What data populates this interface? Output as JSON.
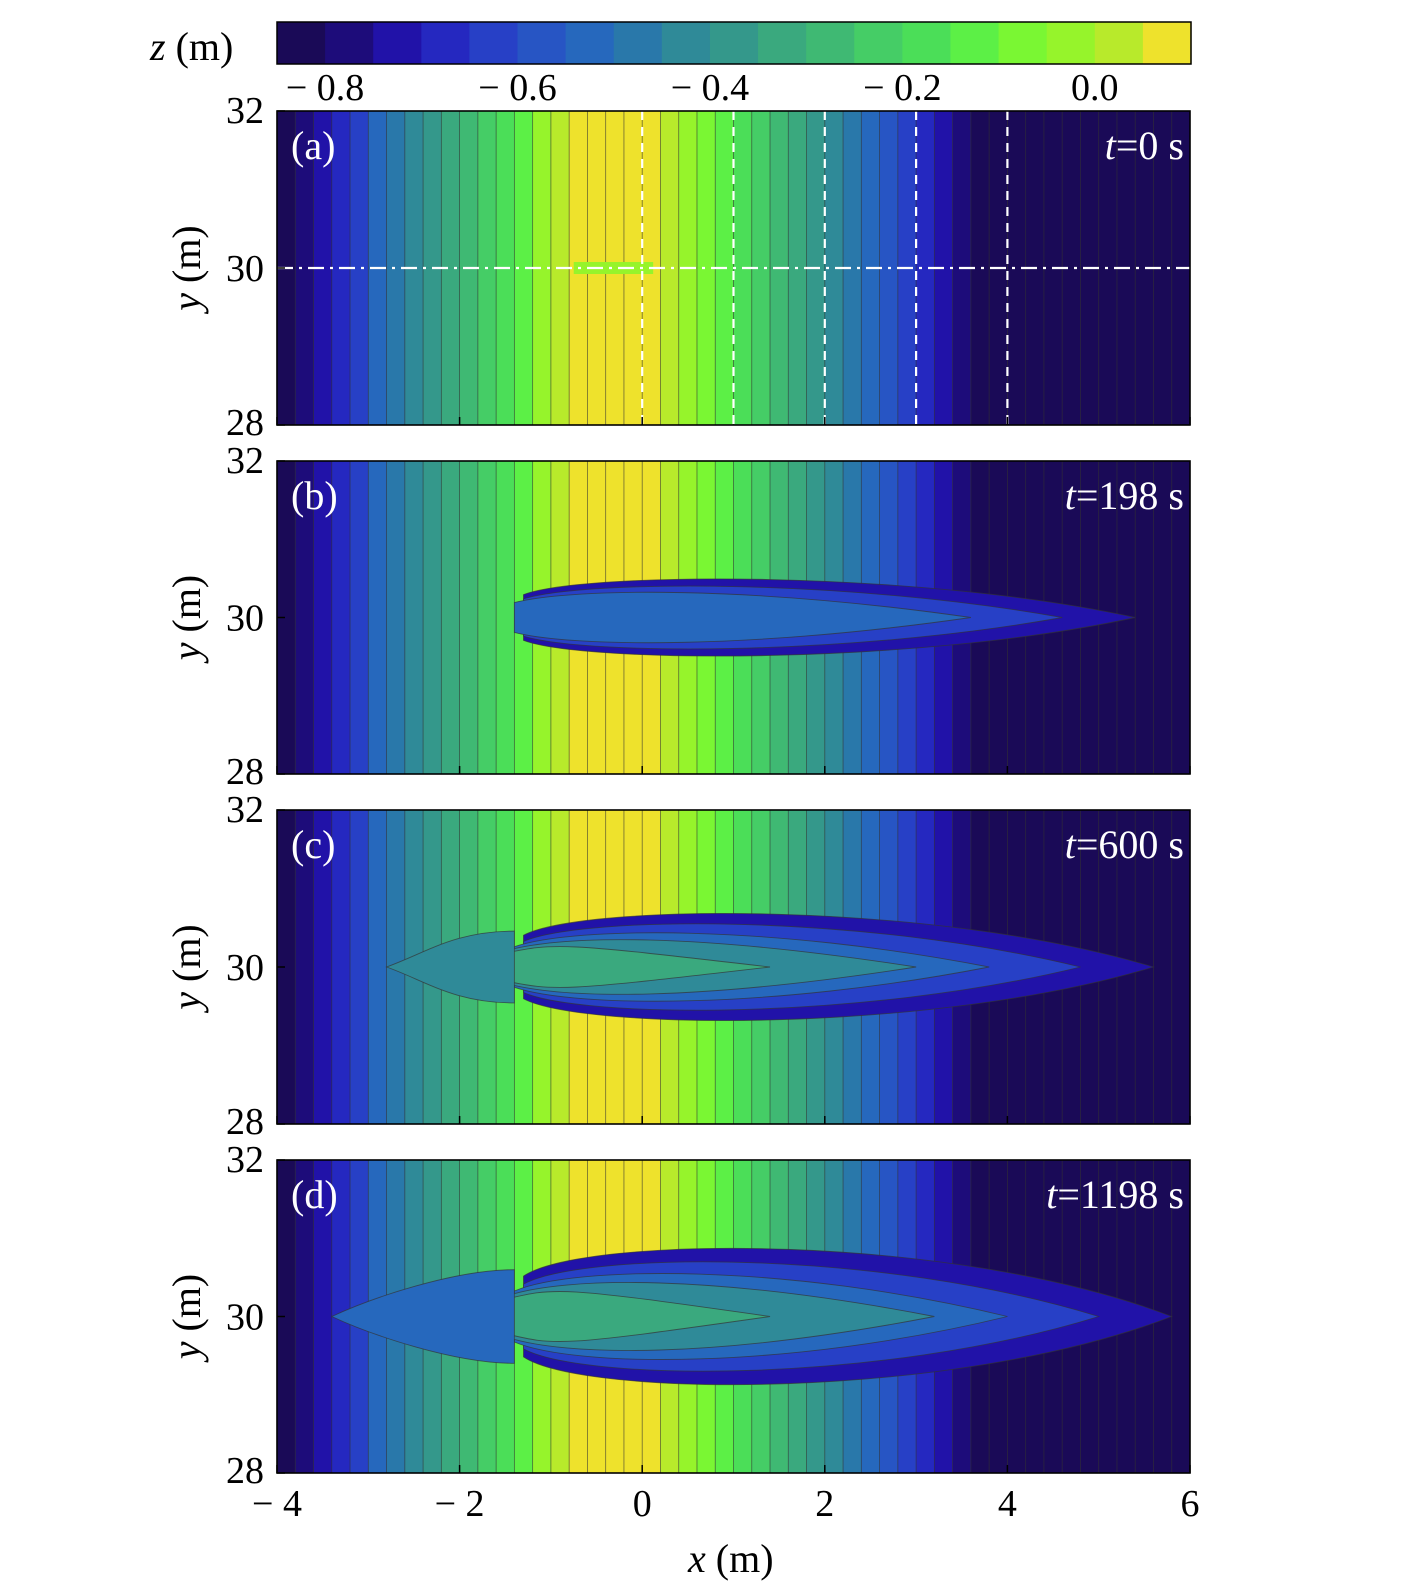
{
  "chart_data": [
    {
      "type": "heatmap",
      "panel": "(a)",
      "time_label": "0 s",
      "xlim": [
        -4,
        6
      ],
      "ylim": [
        28,
        32
      ],
      "xlabel": "x (m)",
      "ylabel": "y (m)",
      "description_values": {
        "crest_x": -0.2,
        "min_z": -0.85,
        "max_z": 0.12
      },
      "guide_lines": {
        "vertical_x": [
          0,
          1,
          2,
          3,
          4
        ],
        "horizontal_y": [
          30
        ]
      }
    },
    {
      "type": "heatmap",
      "panel": "(b)",
      "time_label": "198 s",
      "xlim": [
        -4,
        6
      ],
      "ylim": [
        28,
        32
      ],
      "xlabel": "x (m)",
      "ylabel": "y (m)"
    },
    {
      "type": "heatmap",
      "panel": "(c)",
      "time_label": "600 s",
      "xlim": [
        -4,
        6
      ],
      "ylim": [
        28,
        32
      ],
      "xlabel": "x (m)",
      "ylabel": "y (m)"
    },
    {
      "type": "heatmap",
      "panel": "(d)",
      "time_label": "1198 s",
      "xlim": [
        -4,
        6
      ],
      "ylim": [
        28,
        32
      ],
      "xlabel": "x (m)",
      "ylabel": "y (m)"
    }
  ],
  "colorbar": {
    "label_var": "z",
    "label_unit": " (m)",
    "ticks": [
      "− 0.8",
      "− 0.6",
      "− 0.4",
      "− 0.2",
      "0.0"
    ],
    "tick_values": [
      -0.8,
      -0.6,
      -0.4,
      -0.2,
      0.0
    ],
    "range": [
      -0.85,
      0.1
    ],
    "colors": [
      "#1a0a57",
      "#1d0c7a",
      "#2112a8",
      "#2528c0",
      "#2740c6",
      "#2755c4",
      "#2668bd",
      "#2978aa",
      "#2f8a98",
      "#34988b",
      "#3aa97e",
      "#3fb973",
      "#45cd66",
      "#4bde58",
      "#5cf046",
      "#7af733",
      "#96f42b",
      "#b8ea2b",
      "#eee22c"
    ]
  },
  "x_ticks": [
    "− 4",
    "− 2",
    "0",
    "2",
    "4",
    "6"
  ],
  "x_tick_values": [
    -4,
    -2,
    0,
    2,
    4,
    6
  ],
  "y_ticks": [
    "28",
    "30",
    "32"
  ],
  "y_tick_values": [
    28,
    30,
    32
  ],
  "xlabel_var": "x",
  "xlabel_unit": " (m)",
  "ylabel_var": "y",
  "ylabel_unit": " (m)",
  "time_prefix": "t",
  "panels": [
    {
      "label": "(a)",
      "time": "=0 s"
    },
    {
      "label": "(b)",
      "time": "=198 s"
    },
    {
      "label": "(c)",
      "time": "=600 s"
    },
    {
      "label": "(d)",
      "time": "=1198 s"
    }
  ]
}
